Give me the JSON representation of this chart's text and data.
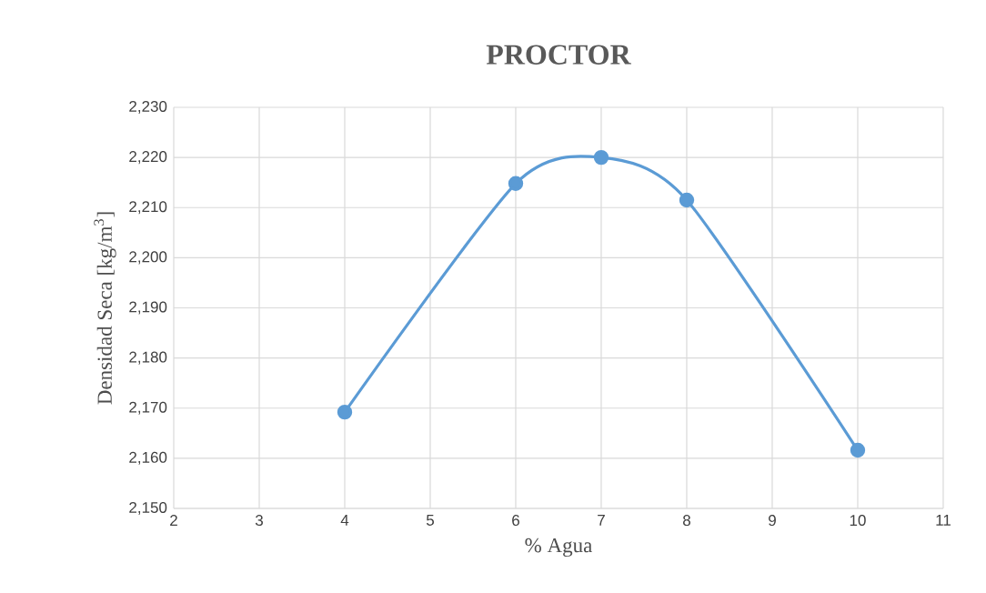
{
  "chart_data": {
    "type": "line",
    "title": "PROCTOR",
    "xlabel": "% Agua",
    "ylabel": "Densidad Seca [kg/m$^{3}$]",
    "x": [
      4,
      6,
      7,
      8,
      10
    ],
    "series": [
      {
        "color": "#5b9bd5",
        "values": [
          2169.2,
          2214.8,
          2220.0,
          2211.5,
          2161.6
        ]
      }
    ],
    "xlim": [
      2,
      11
    ],
    "xticks": [
      2,
      3,
      4,
      5,
      6,
      7,
      8,
      9,
      10,
      11
    ],
    "ylim": [
      2150,
      2230
    ],
    "yticks": [
      {
        "value": 2150,
        "label": "2,150"
      },
      {
        "value": 2160,
        "label": "2,160"
      },
      {
        "value": 2170,
        "label": "2,170"
      },
      {
        "value": 2180,
        "label": "2,180"
      },
      {
        "value": 2190,
        "label": "2,190"
      },
      {
        "value": 2200,
        "label": "2,200"
      },
      {
        "value": 2210,
        "label": "2,210"
      },
      {
        "value": 2220,
        "label": "2,220"
      },
      {
        "value": 2230,
        "label": "2,230"
      }
    ],
    "grid": true,
    "marker": "circle",
    "line_style": "solid"
  }
}
